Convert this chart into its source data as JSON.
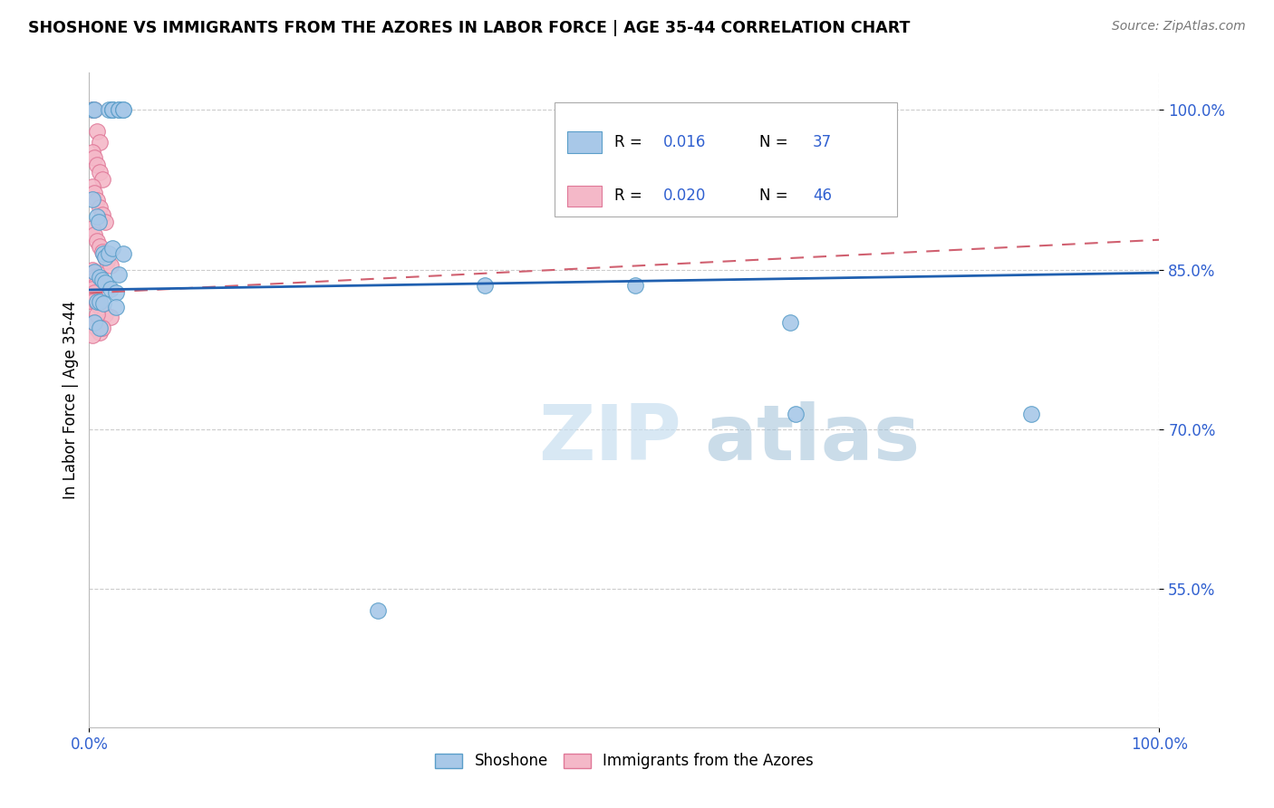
{
  "title": "SHOSHONE VS IMMIGRANTS FROM THE AZORES IN LABOR FORCE | AGE 35-44 CORRELATION CHART",
  "source": "Source: ZipAtlas.com",
  "ylabel_label": "In Labor Force | Age 35-44",
  "legend_blue_r": "R = ",
  "legend_blue_rv": "0.016",
  "legend_blue_n": "N = ",
  "legend_blue_nv": "37",
  "legend_pink_r": "R = ",
  "legend_pink_rv": "0.020",
  "legend_pink_n": "N = ",
  "legend_pink_nv": "46",
  "watermark_zip": "ZIP",
  "watermark_atlas": "atlas",
  "blue_color": "#a8c8e8",
  "blue_border": "#5a9ec9",
  "pink_color": "#f4b8c8",
  "pink_border": "#e07898",
  "blue_line_color": "#2060b0",
  "pink_line_color": "#d06070",
  "text_blue": "#3060d0",
  "text_orange": "#d06000",
  "text_darkblue": "#1a3a8a",
  "blue_scatter_x": [
    0.003,
    0.005,
    0.018,
    0.022,
    0.022,
    0.022,
    0.028,
    0.028,
    0.032,
    0.032,
    0.003,
    0.007,
    0.009,
    0.013,
    0.015,
    0.018,
    0.022,
    0.028,
    0.032,
    0.005,
    0.01,
    0.012,
    0.015,
    0.02,
    0.025,
    0.007,
    0.01,
    0.013,
    0.025,
    0.005,
    0.01,
    0.37,
    0.51,
    0.655,
    0.88,
    0.27,
    0.66
  ],
  "blue_scatter_y": [
    1.0,
    1.0,
    1.0,
    1.0,
    1.0,
    1.0,
    1.0,
    1.0,
    1.0,
    1.0,
    0.916,
    0.9,
    0.895,
    0.865,
    0.862,
    0.865,
    0.87,
    0.845,
    0.865,
    0.848,
    0.843,
    0.84,
    0.838,
    0.832,
    0.828,
    0.82,
    0.82,
    0.818,
    0.815,
    0.8,
    0.795,
    0.835,
    0.835,
    0.8,
    0.714,
    0.53,
    0.714
  ],
  "pink_scatter_x": [
    0.003,
    0.005,
    0.007,
    0.01,
    0.003,
    0.005,
    0.007,
    0.01,
    0.012,
    0.003,
    0.005,
    0.007,
    0.01,
    0.012,
    0.015,
    0.003,
    0.005,
    0.007,
    0.01,
    0.012,
    0.015,
    0.017,
    0.02,
    0.003,
    0.005,
    0.007,
    0.003,
    0.005,
    0.007,
    0.003,
    0.005,
    0.003,
    0.005,
    0.003,
    0.007,
    0.01,
    0.015,
    0.02,
    0.003,
    0.005,
    0.007,
    0.01,
    0.003,
    0.005,
    0.007,
    0.012
  ],
  "pink_scatter_y": [
    1.0,
    1.0,
    0.98,
    0.97,
    0.96,
    0.955,
    0.948,
    0.942,
    0.935,
    0.928,
    0.922,
    0.915,
    0.908,
    0.902,
    0.895,
    0.889,
    0.883,
    0.877,
    0.872,
    0.867,
    0.862,
    0.858,
    0.854,
    0.85,
    0.847,
    0.844,
    0.842,
    0.84,
    0.838,
    0.836,
    0.834,
    0.832,
    0.828,
    0.82,
    0.818,
    0.815,
    0.808,
    0.805,
    0.8,
    0.797,
    0.794,
    0.791,
    0.788,
    0.8,
    0.808,
    0.795
  ],
  "xlim": [
    0.0,
    1.0
  ],
  "ylim": [
    0.42,
    1.035
  ],
  "ytick_vals": [
    0.55,
    0.7,
    0.85,
    1.0
  ],
  "ytick_labels": [
    "55.0%",
    "70.0%",
    "85.0%",
    "100.0%"
  ],
  "xtick_vals": [
    0.0,
    1.0
  ],
  "xtick_labels": [
    "0.0%",
    "100.0%"
  ],
  "blue_line_x": [
    0.0,
    1.0
  ],
  "blue_line_y": [
    0.831,
    0.847
  ],
  "pink_line_x": [
    0.0,
    1.0
  ],
  "pink_line_y": [
    0.828,
    0.878
  ]
}
